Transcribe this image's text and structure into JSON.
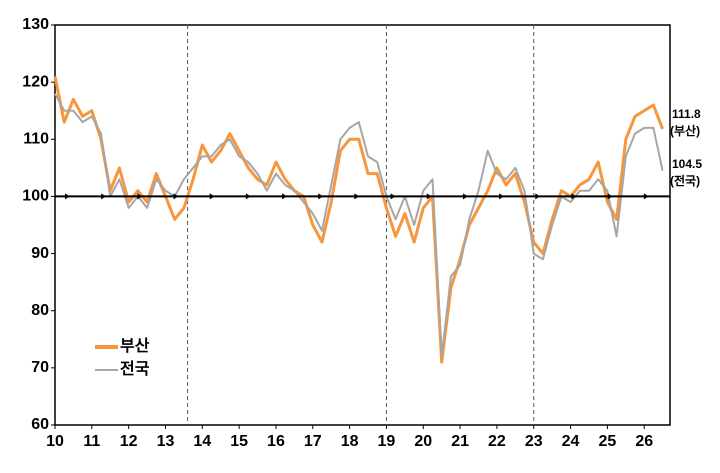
{
  "chart_data": {
    "type": "line",
    "x": [
      10,
      10.25,
      10.5,
      10.75,
      11,
      11.25,
      11.5,
      11.75,
      12,
      12.25,
      12.5,
      12.75,
      13,
      13.25,
      13.5,
      13.75,
      14,
      14.25,
      14.5,
      14.75,
      15,
      15.25,
      15.5,
      15.75,
      16,
      16.25,
      16.5,
      16.75,
      17,
      17.25,
      17.5,
      17.75,
      18,
      18.25,
      18.5,
      18.75,
      19,
      19.25,
      19.5,
      19.75,
      20,
      20.25,
      20.5,
      20.75,
      21,
      21.25,
      21.5,
      21.75,
      22,
      22.25,
      22.5,
      22.75,
      23,
      23.25,
      23.5,
      23.75,
      24,
      24.25,
      24.5,
      24.75,
      25,
      25.25,
      25.5,
      25.75,
      26,
      26.25,
      26.5
    ],
    "series": [
      {
        "name": "부산",
        "color": "#f7963c",
        "values": [
          121,
          113,
          117,
          114,
          115,
          110,
          101,
          105,
          99,
          101,
          99,
          104,
          100,
          96,
          98,
          103,
          109,
          106,
          108,
          111,
          108,
          105,
          103,
          102,
          106,
          103,
          101,
          100,
          95,
          92,
          99,
          108,
          110,
          110,
          104,
          104,
          98,
          93,
          97,
          92,
          98,
          100,
          71,
          84,
          89,
          95,
          98,
          101,
          105,
          102,
          104,
          99,
          92,
          90,
          96,
          101,
          100,
          102,
          103,
          106,
          99,
          96,
          110,
          114,
          115,
          116,
          111.8
        ]
      },
      {
        "name": "전국",
        "color": "#a6a6a6",
        "values": [
          118,
          115,
          115,
          113,
          114,
          111,
          100,
          103,
          98,
          100,
          98,
          103,
          101,
          100,
          103,
          105,
          107,
          107,
          109,
          110,
          107,
          106,
          104,
          101,
          104,
          102,
          101,
          99,
          97,
          94,
          102,
          110,
          112,
          113,
          107,
          106,
          100,
          96,
          100,
          95,
          101,
          103,
          72,
          86,
          88,
          96,
          101,
          108,
          104,
          103,
          105,
          101,
          90,
          89,
          95,
          100,
          99,
          101,
          101,
          103,
          101,
          93,
          107,
          111,
          112,
          112,
          104.5
        ]
      }
    ],
    "end_labels": [
      {
        "value": "111.8",
        "name": "(부산)"
      },
      {
        "value": "104.5",
        "name": "(전국)"
      }
    ],
    "xlim": [
      10,
      26.7
    ],
    "xticks": [
      10,
      11,
      12,
      13,
      14,
      15,
      16,
      17,
      18,
      19,
      20,
      21,
      22,
      23,
      24,
      25,
      26
    ],
    "ylim": [
      60,
      130
    ],
    "yticks": [
      60,
      70,
      80,
      90,
      100,
      110,
      120,
      130
    ],
    "baseline": 100,
    "vlines": [
      13.6,
      19,
      23
    ],
    "legend": "lower left"
  }
}
